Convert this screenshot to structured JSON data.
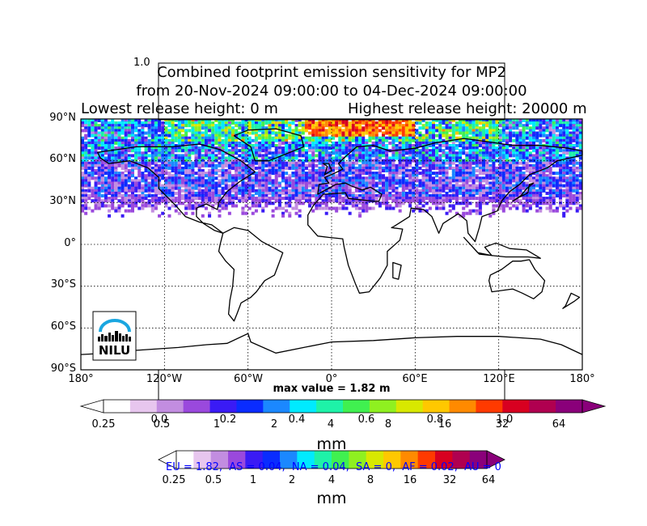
{
  "chart_data": {
    "type": "heatmap",
    "title": "Combined footprint emission sensitivity for MP2",
    "subtitle": "from 20-Nov-2024 09:00:00 to 04-Dec-2024 09:00:00",
    "release_heights": {
      "lowest": "Lowest release height: 0 m",
      "highest": "Highest release height: 20000 m"
    },
    "stray_ticks": {
      "top": "1.0",
      "mid_colorbar": [
        "0.0",
        "0.2",
        "0.4",
        "0.6",
        "0.8",
        "1.0"
      ]
    },
    "y_ticks": [
      "90°N",
      "60°N",
      "30°N",
      "0°",
      "30°S",
      "60°S",
      "90°S"
    ],
    "x_ticks": [
      "180°",
      "120°W",
      "60°W",
      "0°",
      "60°E",
      "120°E",
      "180°"
    ],
    "lat_range": [
      -90,
      90
    ],
    "lon_range": [
      -180,
      180
    ],
    "grid": true,
    "max_value_label": "max value = 1.82 m",
    "logo_text": "NILU",
    "colorbar": {
      "ticks": [
        "0.25",
        "0.5",
        "1",
        "2",
        "4",
        "8",
        "16",
        "32",
        "64"
      ],
      "unit": "mm",
      "colors": [
        "#ffffff",
        "#e7c6ee",
        "#c28de0",
        "#9a49dd",
        "#3a1bf5",
        "#0a2cff",
        "#1b88ff",
        "#00eaff",
        "#1ef2a8",
        "#40f050",
        "#8ff020",
        "#d8e800",
        "#ffc800",
        "#ff8a00",
        "#ff3a00",
        "#d80020",
        "#b00050",
        "#8a007a"
      ]
    },
    "colorbar2": {
      "ticks": [
        "0.25",
        "0.5",
        "1",
        "2",
        "4",
        "8",
        "16",
        "32",
        "64"
      ],
      "unit": "mm"
    },
    "region_summary": "EU = 1.82,  AS = 0.04,  NA = 0.04,  SA = 0,  AF = 0.02,  AU = 0",
    "region_color": "#0000ff"
  }
}
